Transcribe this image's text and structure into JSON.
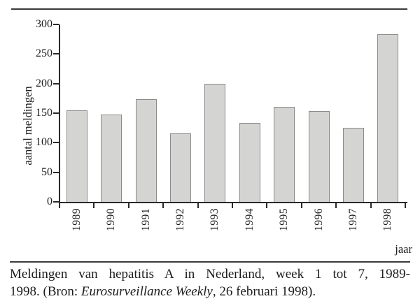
{
  "chart_data": {
    "type": "bar",
    "title": "",
    "categories": [
      "1989",
      "1990",
      "1991",
      "1992",
      "1993",
      "1994",
      "1995",
      "1996",
      "1997",
      "1998"
    ],
    "values": [
      155,
      148,
      174,
      116,
      200,
      134,
      161,
      153,
      125,
      284
    ],
    "xlabel": "jaar",
    "ylabel": "aantal meldingen",
    "ylim": [
      0,
      300
    ],
    "yticks": [
      0,
      50,
      100,
      150,
      200,
      250,
      300
    ],
    "grid": false,
    "legend": "none",
    "bar_fill": "#d4d5d3",
    "bar_border": "#8a8a8a",
    "axis_color": "#2a2a2a"
  },
  "caption": {
    "line1": "Meldingen van hepatitis A in Nederland, week 1 tot 7, 1989-",
    "line2_prefix": "1998. (Bron: ",
    "line2_italic": "Eurosurveillance Weekly",
    "line2_suffix": ", 26 februari 1998)."
  }
}
